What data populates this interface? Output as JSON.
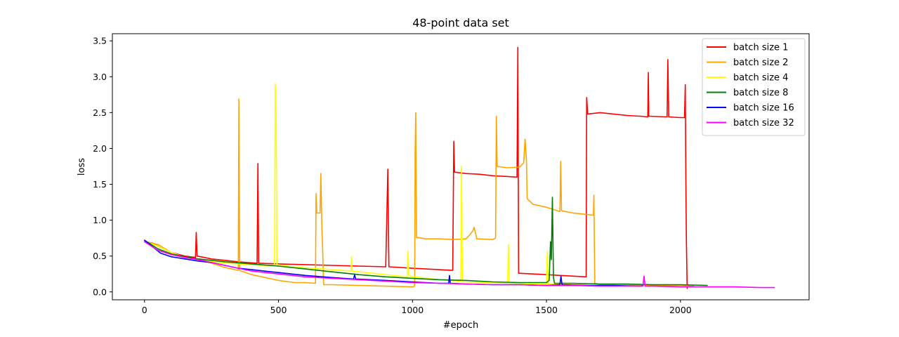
{
  "chart_data": {
    "type": "line",
    "title": "48-point data set",
    "xlabel": "#epoch",
    "ylabel": "loss",
    "xlim": [
      -120,
      2480
    ],
    "ylim": [
      -0.11,
      3.6
    ],
    "xticks": [
      0,
      500,
      1000,
      1500,
      2000
    ],
    "yticks": [
      0.0,
      0.5,
      1.0,
      1.5,
      2.0,
      2.5,
      3.0,
      3.5
    ],
    "xtick_labels": [
      "0",
      "500",
      "1000",
      "1500",
      "2000"
    ],
    "ytick_labels": [
      "0.0",
      "0.5",
      "1.0",
      "1.5",
      "2.0",
      "2.5",
      "3.0",
      "3.5"
    ],
    "grid": false,
    "legend_position": "top-right",
    "series": [
      {
        "name": "batch size 1",
        "color": "#ff0000",
        "points": [
          [
            0,
            0.7
          ],
          [
            30,
            0.68
          ],
          [
            60,
            0.62
          ],
          [
            100,
            0.55
          ],
          [
            150,
            0.5
          ],
          [
            190,
            0.48
          ],
          [
            193,
            0.83
          ],
          [
            196,
            0.5
          ],
          [
            250,
            0.46
          ],
          [
            300,
            0.44
          ],
          [
            350,
            0.42
          ],
          [
            420,
            0.4
          ],
          [
            423,
            1.79
          ],
          [
            426,
            0.4
          ],
          [
            500,
            0.39
          ],
          [
            600,
            0.38
          ],
          [
            700,
            0.37
          ],
          [
            800,
            0.36
          ],
          [
            900,
            0.35
          ],
          [
            908,
            1.71
          ],
          [
            912,
            0.35
          ],
          [
            1000,
            0.33
          ],
          [
            1100,
            0.31
          ],
          [
            1150,
            0.3
          ],
          [
            1154,
            2.1
          ],
          [
            1157,
            1.67
          ],
          [
            1200,
            1.65
          ],
          [
            1250,
            1.64
          ],
          [
            1300,
            1.62
          ],
          [
            1350,
            1.61
          ],
          [
            1390,
            1.6
          ],
          [
            1393,
            3.41
          ],
          [
            1396,
            0.26
          ],
          [
            1450,
            0.25
          ],
          [
            1500,
            0.24
          ],
          [
            1550,
            0.23
          ],
          [
            1600,
            0.22
          ],
          [
            1648,
            0.21
          ],
          [
            1650,
            2.71
          ],
          [
            1654,
            2.48
          ],
          [
            1700,
            2.5
          ],
          [
            1750,
            2.48
          ],
          [
            1800,
            2.46
          ],
          [
            1850,
            2.45
          ],
          [
            1878,
            2.44
          ],
          [
            1880,
            3.06
          ],
          [
            1882,
            2.45
          ],
          [
            1950,
            2.44
          ],
          [
            1953,
            3.24
          ],
          [
            1956,
            2.44
          ],
          [
            2000,
            2.43
          ],
          [
            2015,
            2.43
          ],
          [
            2018,
            2.89
          ],
          [
            2020,
            1.6
          ],
          [
            2022,
            0.7
          ],
          [
            2025,
            0.05
          ]
        ]
      },
      {
        "name": "batch size 2",
        "color": "#ffa500",
        "points": [
          [
            0,
            0.7
          ],
          [
            50,
            0.66
          ],
          [
            100,
            0.55
          ],
          [
            150,
            0.48
          ],
          [
            200,
            0.45
          ],
          [
            250,
            0.4
          ],
          [
            300,
            0.34
          ],
          [
            350,
            0.3
          ],
          [
            352,
            2.69
          ],
          [
            355,
            0.3
          ],
          [
            400,
            0.24
          ],
          [
            450,
            0.2
          ],
          [
            500,
            0.16
          ],
          [
            560,
            0.13
          ],
          [
            600,
            0.13
          ],
          [
            638,
            0.12
          ],
          [
            640,
            1.37
          ],
          [
            643,
            1.1
          ],
          [
            655,
            1.1
          ],
          [
            658,
            1.65
          ],
          [
            662,
            0.86
          ],
          [
            665,
            0.57
          ],
          [
            668,
            0.1
          ],
          [
            700,
            0.1
          ],
          [
            800,
            0.09
          ],
          [
            900,
            0.08
          ],
          [
            1000,
            0.07
          ],
          [
            1008,
            0.08
          ],
          [
            1010,
            1.95
          ],
          [
            1012,
            2.5
          ],
          [
            1015,
            0.76
          ],
          [
            1050,
            0.74
          ],
          [
            1100,
            0.74
          ],
          [
            1150,
            0.73
          ],
          [
            1200,
            0.74
          ],
          [
            1210,
            0.78
          ],
          [
            1225,
            0.85
          ],
          [
            1230,
            0.9
          ],
          [
            1240,
            0.74
          ],
          [
            1300,
            0.73
          ],
          [
            1310,
            0.75
          ],
          [
            1313,
            2.45
          ],
          [
            1316,
            1.75
          ],
          [
            1350,
            1.73
          ],
          [
            1400,
            1.74
          ],
          [
            1415,
            1.8
          ],
          [
            1420,
            2.13
          ],
          [
            1425,
            1.85
          ],
          [
            1428,
            1.3
          ],
          [
            1450,
            1.22
          ],
          [
            1500,
            1.18
          ],
          [
            1550,
            1.12
          ],
          [
            1553,
            1.82
          ],
          [
            1556,
            1.13
          ],
          [
            1600,
            1.1
          ],
          [
            1650,
            1.08
          ],
          [
            1675,
            1.07
          ],
          [
            1677,
            1.35
          ],
          [
            1680,
            0.12
          ],
          [
            1700,
            0.1
          ],
          [
            1800,
            0.1
          ],
          [
            1900,
            0.09
          ],
          [
            2000,
            0.09
          ],
          [
            2050,
            0.08
          ]
        ]
      },
      {
        "name": "batch size 4",
        "color": "#ffff00",
        "points": [
          [
            0,
            0.7
          ],
          [
            50,
            0.64
          ],
          [
            100,
            0.55
          ],
          [
            150,
            0.48
          ],
          [
            200,
            0.45
          ],
          [
            300,
            0.4
          ],
          [
            400,
            0.38
          ],
          [
            485,
            0.36
          ],
          [
            488,
            2.9
          ],
          [
            491,
            2.5
          ],
          [
            494,
            0.38
          ],
          [
            550,
            0.35
          ],
          [
            700,
            0.31
          ],
          [
            770,
            0.29
          ],
          [
            772,
            0.49
          ],
          [
            775,
            0.29
          ],
          [
            900,
            0.24
          ],
          [
            980,
            0.21
          ],
          [
            983,
            0.57
          ],
          [
            986,
            0.22
          ],
          [
            1100,
            0.17
          ],
          [
            1180,
            0.15
          ],
          [
            1183,
            1.75
          ],
          [
            1186,
            0.14
          ],
          [
            1300,
            0.13
          ],
          [
            1355,
            0.12
          ],
          [
            1358,
            0.66
          ],
          [
            1361,
            0.12
          ],
          [
            1450,
            0.11
          ],
          [
            1500,
            0.11
          ],
          [
            1503,
            0.57
          ],
          [
            1506,
            0.11
          ],
          [
            1600,
            0.1
          ],
          [
            1650,
            0.1
          ]
        ]
      },
      {
        "name": "batch size 8",
        "color": "#008000",
        "points": [
          [
            0,
            0.72
          ],
          [
            50,
            0.6
          ],
          [
            100,
            0.53
          ],
          [
            150,
            0.49
          ],
          [
            200,
            0.46
          ],
          [
            250,
            0.44
          ],
          [
            300,
            0.42
          ],
          [
            400,
            0.39
          ],
          [
            500,
            0.36
          ],
          [
            600,
            0.32
          ],
          [
            700,
            0.28
          ],
          [
            800,
            0.24
          ],
          [
            900,
            0.21
          ],
          [
            1000,
            0.19
          ],
          [
            1100,
            0.17
          ],
          [
            1200,
            0.16
          ],
          [
            1300,
            0.14
          ],
          [
            1400,
            0.13
          ],
          [
            1500,
            0.13
          ],
          [
            1510,
            0.16
          ],
          [
            1515,
            0.7
          ],
          [
            1518,
            0.45
          ],
          [
            1522,
            1.32
          ],
          [
            1526,
            0.2
          ],
          [
            1530,
            0.12
          ],
          [
            1600,
            0.12
          ],
          [
            1700,
            0.11
          ],
          [
            1800,
            0.11
          ],
          [
            1900,
            0.1
          ],
          [
            2000,
            0.1
          ],
          [
            2100,
            0.09
          ]
        ]
      },
      {
        "name": "batch size 16",
        "color": "#0000ff",
        "points": [
          [
            0,
            0.72
          ],
          [
            30,
            0.63
          ],
          [
            60,
            0.54
          ],
          [
            100,
            0.49
          ],
          [
            150,
            0.46
          ],
          [
            200,
            0.43
          ],
          [
            250,
            0.41
          ],
          [
            300,
            0.37
          ],
          [
            350,
            0.33
          ],
          [
            400,
            0.31
          ],
          [
            500,
            0.27
          ],
          [
            600,
            0.23
          ],
          [
            700,
            0.2
          ],
          [
            780,
            0.18
          ],
          [
            784,
            0.24
          ],
          [
            788,
            0.18
          ],
          [
            900,
            0.16
          ],
          [
            1000,
            0.14
          ],
          [
            1100,
            0.12
          ],
          [
            1135,
            0.12
          ],
          [
            1138,
            0.23
          ],
          [
            1141,
            0.12
          ],
          [
            1200,
            0.11
          ],
          [
            1300,
            0.1
          ],
          [
            1400,
            0.1
          ],
          [
            1500,
            0.09
          ],
          [
            1550,
            0.1
          ],
          [
            1554,
            0.22
          ],
          [
            1558,
            0.1
          ],
          [
            1650,
            0.09
          ],
          [
            1750,
            0.09
          ],
          [
            1850,
            0.08
          ],
          [
            1860,
            0.09
          ]
        ]
      },
      {
        "name": "batch size 32",
        "color": "#ff00ff",
        "points": [
          [
            0,
            0.7
          ],
          [
            50,
            0.58
          ],
          [
            100,
            0.52
          ],
          [
            150,
            0.48
          ],
          [
            200,
            0.45
          ],
          [
            250,
            0.41
          ],
          [
            300,
            0.37
          ],
          [
            350,
            0.33
          ],
          [
            400,
            0.29
          ],
          [
            500,
            0.25
          ],
          [
            600,
            0.21
          ],
          [
            700,
            0.19
          ],
          [
            800,
            0.17
          ],
          [
            900,
            0.15
          ],
          [
            1000,
            0.13
          ],
          [
            1100,
            0.12
          ],
          [
            1200,
            0.11
          ],
          [
            1300,
            0.1
          ],
          [
            1400,
            0.1
          ],
          [
            1500,
            0.09
          ],
          [
            1600,
            0.09
          ],
          [
            1700,
            0.08
          ],
          [
            1800,
            0.08
          ],
          [
            1860,
            0.08
          ],
          [
            1864,
            0.22
          ],
          [
            1868,
            0.08
          ],
          [
            1900,
            0.08
          ],
          [
            2000,
            0.07
          ],
          [
            2100,
            0.07
          ],
          [
            2200,
            0.07
          ],
          [
            2300,
            0.06
          ],
          [
            2350,
            0.06
          ]
        ]
      }
    ]
  }
}
